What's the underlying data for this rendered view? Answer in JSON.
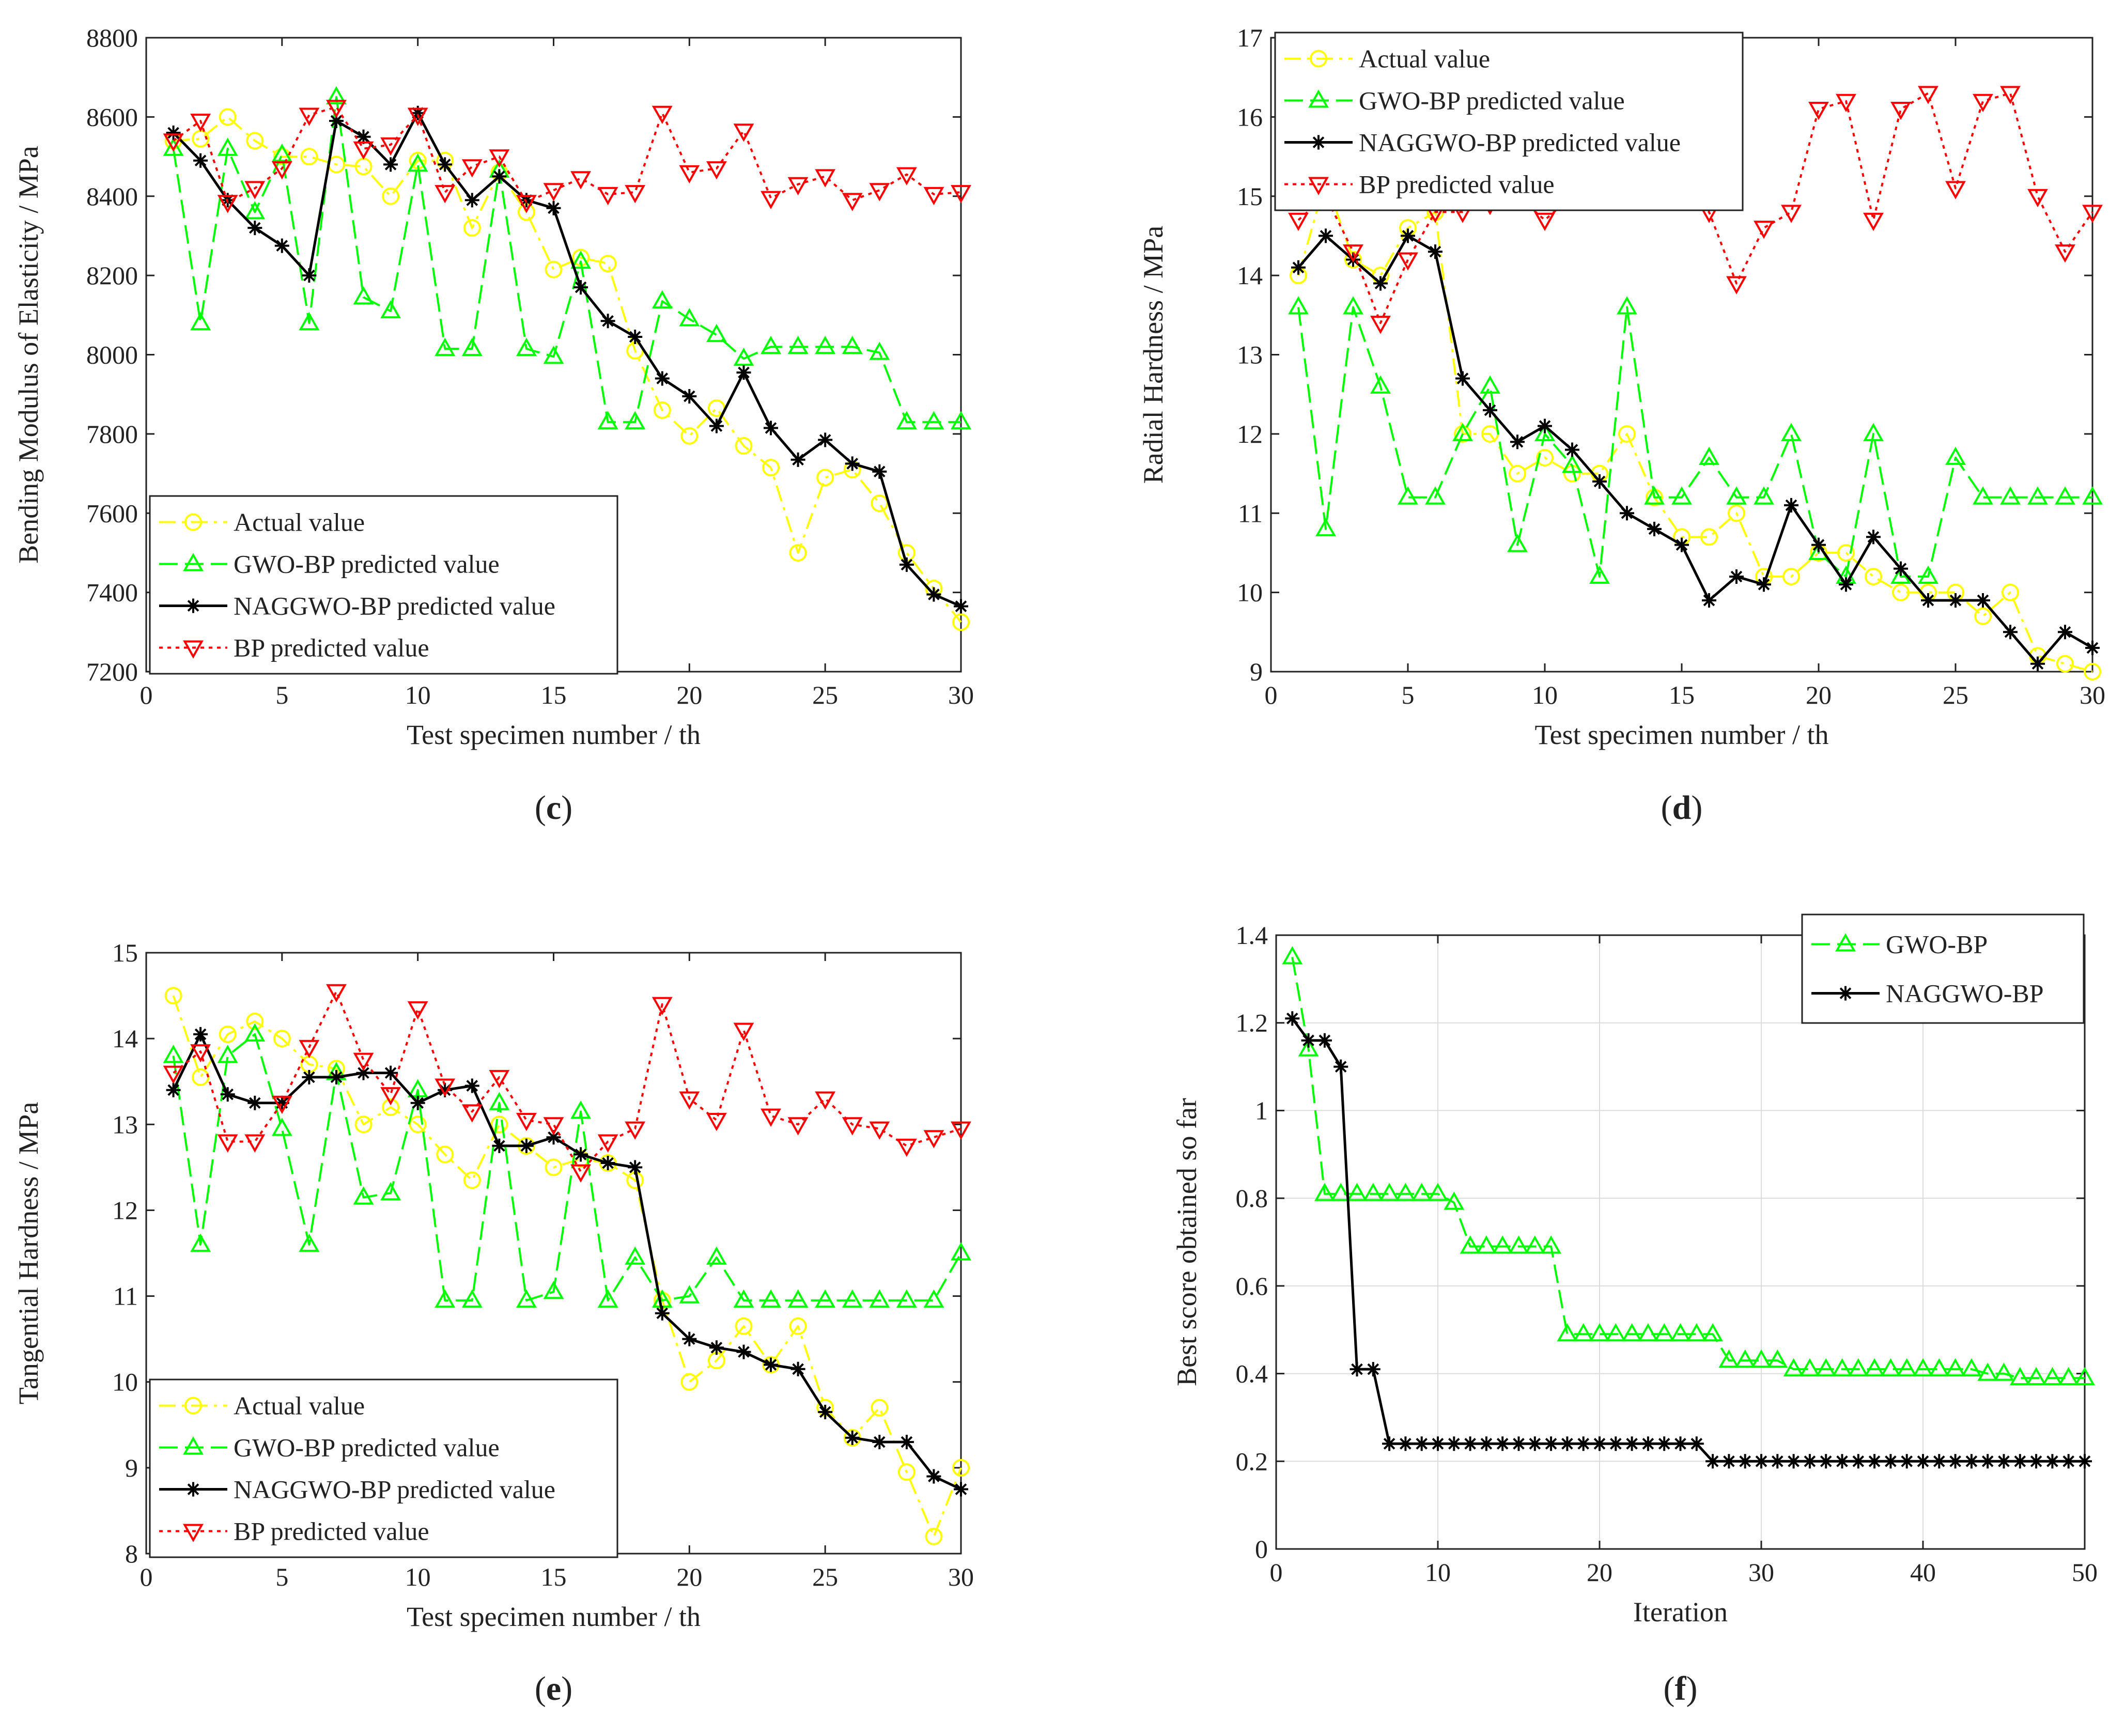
{
  "figure": {
    "chart_data": [
      {
        "id": "c",
        "type": "line",
        "panel_label": "c",
        "title": "",
        "xlabel": "Test specimen number / th",
        "ylabel": "Bending Modulus of Elasticity / MPa",
        "xlim": [
          0,
          30
        ],
        "ylim": [
          7200,
          8800
        ],
        "xticks": [
          0,
          5,
          10,
          15,
          20,
          25,
          30
        ],
        "yticks": [
          7200,
          7400,
          7600,
          7800,
          8000,
          8200,
          8400,
          8600,
          8800
        ],
        "grid": false,
        "legend_position": "bottom-left",
        "x": [
          1,
          2,
          3,
          4,
          5,
          6,
          7,
          8,
          9,
          10,
          11,
          12,
          13,
          14,
          15,
          16,
          17,
          18,
          19,
          20,
          21,
          22,
          23,
          24,
          25,
          26,
          27,
          28,
          29,
          30
        ],
        "series": [
          {
            "name": "Actual value",
            "color": "#ffff00",
            "dash": "dashdot",
            "marker": "circle",
            "values": [
              8540,
              8545,
              8600,
              8540,
              8500,
              8500,
              8480,
              8475,
              8400,
              8490,
              8490,
              8320,
              8460,
              8360,
              8215,
              8245,
              8230,
              8010,
              7860,
              7795,
              7865,
              7770,
              7715,
              7500,
              7690,
              7710,
              7625,
              7500,
              7410,
              7325
            ]
          },
          {
            "name": "GWO-BP predicted value",
            "color": "#00ff00",
            "dash": "dashed",
            "marker": "triangle-up",
            "values": [
              8520,
              8080,
              8520,
              8360,
              8505,
              8080,
              8650,
              8145,
              8110,
              8480,
              8015,
              8015,
              8465,
              8015,
              7995,
              8235,
              7830,
              7830,
              8135,
              8090,
              8050,
              7990,
              8020,
              8020,
              8020,
              8020,
              8005,
              7830,
              7830,
              7830
            ]
          },
          {
            "name": "NAGGWO-BP predicted value",
            "color": "#000000",
            "dash": "solid",
            "marker": "star",
            "values": [
              8560,
              8490,
              8390,
              8320,
              8275,
              8200,
              8590,
              8550,
              8480,
              8610,
              8480,
              8390,
              8450,
              8390,
              8370,
              8170,
              8085,
              8045,
              7940,
              7895,
              7820,
              7955,
              7815,
              7735,
              7785,
              7725,
              7705,
              7470,
              7395,
              7365
            ]
          },
          {
            "name": "BP predicted value",
            "color": "#ff0000",
            "dash": "dotted",
            "marker": "triangle-down",
            "values": [
              8540,
              8590,
              8385,
              8420,
              8470,
              8605,
              8625,
              8520,
              8530,
              8605,
              8410,
              8475,
              8500,
              8385,
              8415,
              8445,
              8405,
              8410,
              8610,
              8460,
              8470,
              8565,
              8395,
              8430,
              8450,
              8390,
              8415,
              8455,
              8405,
              8410
            ]
          }
        ]
      },
      {
        "id": "d",
        "type": "line",
        "panel_label": "d",
        "title": "",
        "xlabel": "Test specimen number / th",
        "ylabel": "Radial Hardness / MPa",
        "xlim": [
          0,
          30
        ],
        "ylim": [
          9,
          17
        ],
        "xticks": [
          0,
          5,
          10,
          15,
          20,
          25,
          30
        ],
        "yticks": [
          9,
          10,
          11,
          12,
          13,
          14,
          15,
          16,
          17
        ],
        "grid": false,
        "legend_position": "top-left",
        "x": [
          1,
          2,
          3,
          4,
          5,
          6,
          7,
          8,
          9,
          10,
          11,
          12,
          13,
          14,
          15,
          16,
          17,
          18,
          19,
          20,
          21,
          22,
          23,
          24,
          25,
          26,
          27,
          28,
          29,
          30
        ],
        "series": [
          {
            "name": "Actual value",
            "color": "#ffff00",
            "dash": "dashdot",
            "marker": "circle",
            "values": [
              14.0,
              15.2,
              14.2,
              14.0,
              14.6,
              14.8,
              12.0,
              12.0,
              11.5,
              11.7,
              11.5,
              11.5,
              12.0,
              11.2,
              10.7,
              10.7,
              11.0,
              10.2,
              10.2,
              10.5,
              10.5,
              10.2,
              10.0,
              10.0,
              10.0,
              9.7,
              10.0,
              9.2,
              9.1,
              9.0
            ]
          },
          {
            "name": "GWO-BP predicted value",
            "color": "#00ff00",
            "dash": "dashed",
            "marker": "triangle-up",
            "values": [
              13.6,
              10.8,
              13.6,
              12.6,
              11.2,
              11.2,
              12.0,
              12.6,
              10.6,
              12.0,
              11.6,
              10.2,
              13.6,
              11.2,
              11.2,
              11.7,
              11.2,
              11.2,
              12.0,
              10.5,
              10.2,
              12.0,
              10.2,
              10.2,
              11.7,
              11.2,
              11.2,
              11.2,
              11.2,
              11.2
            ]
          },
          {
            "name": "NAGGWO-BP predicted value",
            "color": "#000000",
            "dash": "solid",
            "marker": "star",
            "values": [
              14.1,
              14.5,
              14.2,
              13.9,
              14.5,
              14.3,
              12.7,
              12.3,
              11.9,
              12.1,
              11.8,
              11.4,
              11.0,
              10.8,
              10.6,
              9.9,
              10.2,
              10.1,
              11.1,
              10.6,
              10.1,
              10.7,
              10.3,
              9.9,
              9.9,
              9.9,
              9.5,
              9.1,
              9.5,
              9.3
            ]
          },
          {
            "name": "BP predicted value",
            "color": "#ff0000",
            "dash": "dotted",
            "marker": "triangle-down",
            "values": [
              14.7,
              15.0,
              14.3,
              13.4,
              14.2,
              14.8,
              14.8,
              14.9,
              15.0,
              14.7,
              15.0,
              15.0,
              15.0,
              15.0,
              15.0,
              14.8,
              13.9,
              14.6,
              14.8,
              16.1,
              16.2,
              14.7,
              16.1,
              16.3,
              15.1,
              16.2,
              16.3,
              15.0,
              14.3,
              14.8
            ]
          }
        ]
      },
      {
        "id": "e",
        "type": "line",
        "panel_label": "e",
        "title": "",
        "xlabel": "Test specimen number / th",
        "ylabel": "Tangential Hardness / MPa",
        "xlim": [
          0,
          30
        ],
        "ylim": [
          8,
          15
        ],
        "xticks": [
          0,
          5,
          10,
          15,
          20,
          25,
          30
        ],
        "yticks": [
          8,
          9,
          10,
          11,
          12,
          13,
          14,
          15
        ],
        "grid": false,
        "legend_position": "bottom-left",
        "x": [
          1,
          2,
          3,
          4,
          5,
          6,
          7,
          8,
          9,
          10,
          11,
          12,
          13,
          14,
          15,
          16,
          17,
          18,
          19,
          20,
          21,
          22,
          23,
          24,
          25,
          26,
          27,
          28,
          29,
          30
        ],
        "series": [
          {
            "name": "Actual value",
            "color": "#ffff00",
            "dash": "dashdot",
            "marker": "circle",
            "values": [
              14.5,
              13.55,
              14.05,
              14.2,
              14.0,
              13.7,
              13.65,
              13.0,
              13.2,
              13.0,
              12.65,
              12.35,
              13.0,
              12.75,
              12.5,
              12.6,
              12.55,
              12.35,
              10.95,
              10.0,
              10.25,
              10.65,
              10.2,
              10.65,
              9.7,
              9.35,
              9.7,
              8.95,
              8.2,
              9.0
            ]
          },
          {
            "name": "GWO-BP predicted value",
            "color": "#00ff00",
            "dash": "dashed",
            "marker": "triangle-up",
            "values": [
              13.8,
              11.6,
              13.8,
              14.05,
              12.95,
              11.6,
              13.6,
              12.15,
              12.2,
              13.4,
              10.95,
              10.95,
              13.25,
              10.95,
              11.05,
              13.15,
              10.95,
              11.45,
              10.95,
              11.0,
              11.45,
              10.95,
              10.95,
              10.95,
              10.95,
              10.95,
              10.95,
              10.95,
              10.95,
              11.5
            ]
          },
          {
            "name": "NAGGWO-BP predicted value",
            "color": "#000000",
            "dash": "solid",
            "marker": "star",
            "values": [
              13.4,
              14.05,
              13.35,
              13.25,
              13.25,
              13.55,
              13.55,
              13.6,
              13.6,
              13.25,
              13.4,
              13.45,
              12.75,
              12.75,
              12.85,
              12.65,
              12.55,
              12.5,
              10.8,
              10.5,
              10.4,
              10.35,
              10.2,
              10.15,
              9.65,
              9.35,
              9.3,
              9.3,
              8.9,
              8.75
            ]
          },
          {
            "name": "BP predicted value",
            "color": "#ff0000",
            "dash": "dotted",
            "marker": "triangle-down",
            "values": [
              13.6,
              13.85,
              12.8,
              12.8,
              13.25,
              13.9,
              14.55,
              13.75,
              13.35,
              14.35,
              13.45,
              13.15,
              13.55,
              13.05,
              13.0,
              12.45,
              12.8,
              12.95,
              14.4,
              13.3,
              13.05,
              14.1,
              13.1,
              13.0,
              13.3,
              13.0,
              12.95,
              12.75,
              12.85,
              12.95
            ]
          }
        ]
      },
      {
        "id": "f",
        "type": "line",
        "panel_label": "f",
        "title": "",
        "xlabel": "Iteration",
        "ylabel": "Best score obtained so far",
        "xlim": [
          0,
          50
        ],
        "ylim": [
          0,
          1.4
        ],
        "xticks": [
          0,
          10,
          20,
          30,
          40,
          50
        ],
        "yticks": [
          0,
          0.2,
          0.4,
          0.6,
          0.8,
          1,
          1.2,
          1.4
        ],
        "grid": true,
        "legend_position": "top-right",
        "x": [
          1,
          2,
          3,
          4,
          5,
          6,
          7,
          8,
          9,
          10,
          11,
          12,
          13,
          14,
          15,
          16,
          17,
          18,
          19,
          20,
          21,
          22,
          23,
          24,
          25,
          26,
          27,
          28,
          29,
          30,
          31,
          32,
          33,
          34,
          35,
          36,
          37,
          38,
          39,
          40,
          41,
          42,
          43,
          44,
          45,
          46,
          47,
          48,
          49,
          50
        ],
        "series": [
          {
            "name": "GWO-BP",
            "color": "#00ff00",
            "dash": "dashed",
            "marker": "triangle-up",
            "values": [
              1.35,
              1.14,
              0.81,
              0.81,
              0.81,
              0.81,
              0.81,
              0.81,
              0.81,
              0.81,
              0.79,
              0.69,
              0.69,
              0.69,
              0.69,
              0.69,
              0.69,
              0.49,
              0.49,
              0.49,
              0.49,
              0.49,
              0.49,
              0.49,
              0.49,
              0.49,
              0.49,
              0.43,
              0.43,
              0.43,
              0.43,
              0.41,
              0.41,
              0.41,
              0.41,
              0.41,
              0.41,
              0.41,
              0.41,
              0.41,
              0.41,
              0.41,
              0.41,
              0.4,
              0.4,
              0.39,
              0.39,
              0.39,
              0.39,
              0.39
            ]
          },
          {
            "name": "NAGGWO-BP",
            "color": "#000000",
            "dash": "solid",
            "marker": "star",
            "values": [
              1.21,
              1.16,
              1.16,
              1.1,
              0.41,
              0.41,
              0.24,
              0.24,
              0.24,
              0.24,
              0.24,
              0.24,
              0.24,
              0.24,
              0.24,
              0.24,
              0.24,
              0.24,
              0.24,
              0.24,
              0.24,
              0.24,
              0.24,
              0.24,
              0.24,
              0.24,
              0.2,
              0.2,
              0.2,
              0.2,
              0.2,
              0.2,
              0.2,
              0.2,
              0.2,
              0.2,
              0.2,
              0.2,
              0.2,
              0.2,
              0.2,
              0.2,
              0.2,
              0.2,
              0.2,
              0.2,
              0.2,
              0.2,
              0.2,
              0.2
            ]
          }
        ]
      }
    ]
  }
}
